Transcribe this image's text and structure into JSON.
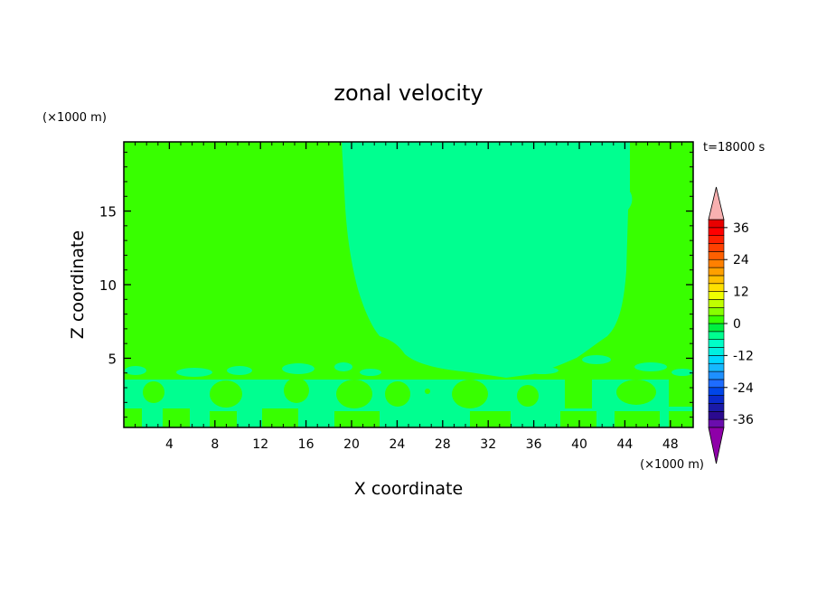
{
  "chart_data": {
    "type": "heatmap",
    "title": "zonal velocity",
    "xlabel": "X coordinate",
    "ylabel": "Z coordinate",
    "x_units": "(×1000 m)",
    "y_units": "(×1000 m)",
    "time_label": "t=18000 s",
    "xlim": [
      0,
      50
    ],
    "ylim": [
      0.3,
      19.7
    ],
    "xticks": [
      4,
      8,
      12,
      16,
      20,
      24,
      28,
      32,
      36,
      40,
      44,
      48
    ],
    "yticks": [
      5,
      10,
      15
    ],
    "colorbar": {
      "levels": [
        -39,
        -36,
        -33,
        -30,
        -27,
        -24,
        -21,
        -18,
        -15,
        -12,
        -9,
        -6,
        -3,
        0,
        3,
        6,
        9,
        12,
        15,
        18,
        21,
        24,
        27,
        30,
        33,
        36,
        39
      ],
      "colors": [
        "#6a0dad",
        "#2b0a8f",
        "#1a1aa8",
        "#0a2acc",
        "#0046e8",
        "#1e6cff",
        "#1e90ff",
        "#16b8ff",
        "#00d8ff",
        "#00f0e0",
        "#00ffc8",
        "#00ff90",
        "#00f040",
        "#38ff00",
        "#88ff00",
        "#c0ff00",
        "#f0ff00",
        "#ffe000",
        "#ffc000",
        "#ffa000",
        "#ff8000",
        "#ff6000",
        "#ff4000",
        "#ff2000",
        "#ff0000",
        "#e80000"
      ],
      "under_color": "#8e00a8",
      "over_color": "#f8b0b0",
      "tick_labels": [
        "36",
        "24",
        "12",
        "0",
        "-12",
        "-24",
        "-36"
      ],
      "tick_values": [
        36,
        24,
        12,
        0,
        -12,
        -24,
        -36
      ]
    },
    "field_description_values": {
      "upper_left_region_velocity": 1.5,
      "central_column_velocity": -1.5,
      "upper_right_region_velocity": 1.5,
      "lower_layer_alternating": [
        1.5,
        -1.5
      ]
    }
  }
}
